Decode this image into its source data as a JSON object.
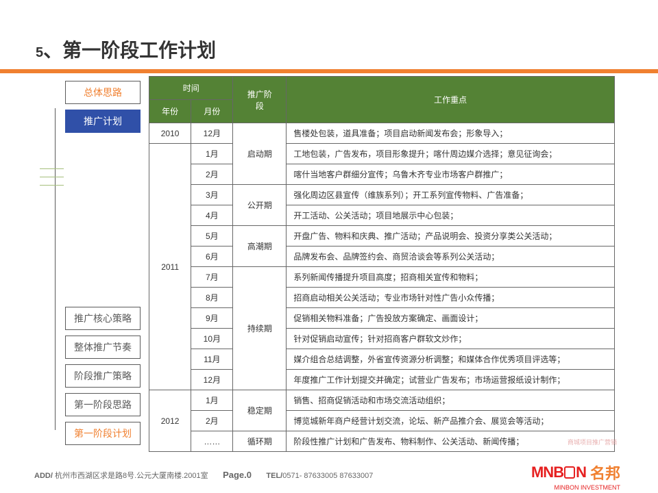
{
  "title_num": "5",
  "title_sep": "、",
  "title_text": "第一阶段工作计划",
  "nav_top": [
    {
      "label": "总体思路",
      "cls": "highlight"
    },
    {
      "label": "推广计划",
      "cls": "active"
    }
  ],
  "nav_bottom": [
    {
      "label": "推广核心策略",
      "cls": ""
    },
    {
      "label": "整体推广节奏",
      "cls": ""
    },
    {
      "label": "阶段推广策略",
      "cls": ""
    },
    {
      "label": "第一阶段思路",
      "cls": ""
    },
    {
      "label": "第一阶段计划",
      "cls": "highlight"
    }
  ],
  "table": {
    "head_time": "时间",
    "head_year": "年份",
    "head_month": "月份",
    "head_phase": "推广阶\n段",
    "head_focus": "工作重点",
    "rows": [
      {
        "year": "2010",
        "year_span": 1,
        "month": "12月",
        "phase": "启动期",
        "phase_span": 3,
        "desc": "售楼处包装，道具准备；项目启动新闻发布会；形象导入；"
      },
      {
        "year": "2011",
        "year_span": 12,
        "month": "1月",
        "desc": "工地包装，广告发布，项目形象提升；喀什周边媒介选择；意见征询会；"
      },
      {
        "month": "2月",
        "desc": "喀什当地客户群细分宣传；乌鲁木齐专业市场客户群推广；"
      },
      {
        "month": "3月",
        "phase": "公开期",
        "phase_span": 2,
        "desc": "强化周边区县宣传（维族系列）；开工系列宣传物料、广告准备；"
      },
      {
        "month": "4月",
        "desc": "开工活动、公关活动；项目地展示中心包装；"
      },
      {
        "month": "5月",
        "phase": "高潮期",
        "phase_span": 2,
        "desc": "开盘广告、物料和庆典、推广活动；产品说明会、投资分享类公关活动；"
      },
      {
        "month": "6月",
        "desc": "品牌发布会、品牌签约会、商贸洽谈会等系列公关活动；"
      },
      {
        "month": "7月",
        "phase": "持续期",
        "phase_span": 6,
        "desc": "系列新闻传播提升项目高度；招商相关宣传和物料；"
      },
      {
        "month": "8月",
        "desc": "招商启动相关公关活动；专业市场针对性广告小众传播；"
      },
      {
        "month": "9月",
        "desc": "促销相关物料准备；广告投放方案确定、画面设计；"
      },
      {
        "month": "10月",
        "desc": "针对促销启动宣传；针对招商客户群软文炒作；"
      },
      {
        "month": "11月",
        "desc": "媒介组合总结调整，外省宣传资源分析调整；和媒体合作优秀项目评选等；"
      },
      {
        "month": "12月",
        "desc": "年度推广工作计划提交并确定；试营业广告发布；市场运营报纸设计制作；"
      },
      {
        "year": "2012",
        "year_span": 3,
        "month": "1月",
        "phase": "稳定期",
        "phase_span": 2,
        "desc": "销售、招商促销活动和市场交流活动组织；"
      },
      {
        "month": "2月",
        "desc": "博览城新年商户经营计划交流，论坛、新产品推介会、展览会等活动；"
      },
      {
        "month": "……",
        "phase": "循环期",
        "phase_span": 1,
        "desc": "阶段性推广计划和广告发布、物料制作、公关活动、新闻传播；"
      }
    ]
  },
  "footer_add_label": "ADD/",
  "footer_add": " 杭州市西湖区求是路8号.公元大厦南楼.2001室",
  "footer_page_label": "Page.",
  "footer_page_num": "0",
  "footer_tel_label": "TEL/",
  "footer_tel": "0571- 87633005 87633007",
  "logo_text": "MNB",
  "logo_text2": "N",
  "logo_cn": "名邦",
  "logo_sub": "MINBON INVESTMENT",
  "watermark": "商城项目推广营销"
}
